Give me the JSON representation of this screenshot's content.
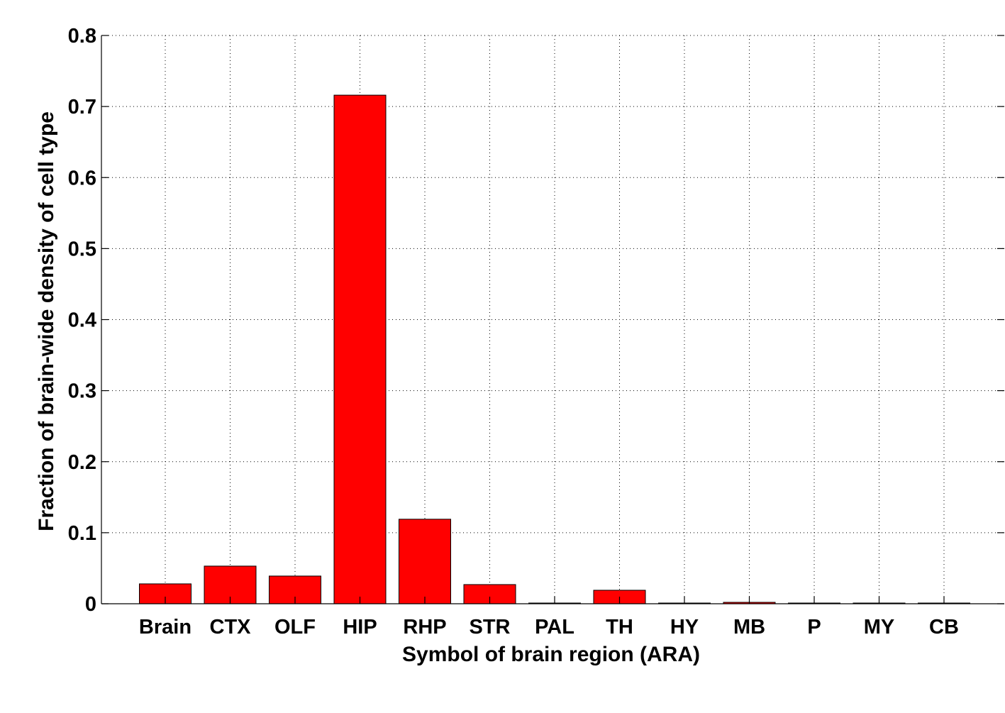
{
  "chart_data": {
    "type": "bar",
    "title": "",
    "xlabel": "Symbol of brain region (ARA)",
    "ylabel": "Fraction of brain-wide density of cell type",
    "categories": [
      "Brain",
      "CTX",
      "OLF",
      "HIP",
      "RHP",
      "STR",
      "PAL",
      "TH",
      "HY",
      "MB",
      "P",
      "MY",
      "CB"
    ],
    "values": [
      0.028,
      0.053,
      0.039,
      0.716,
      0.119,
      0.027,
      0.001,
      0.019,
      0.001,
      0.002,
      0.001,
      0.001,
      0.001
    ],
    "ylim": [
      0,
      0.8
    ],
    "yticks": [
      "0",
      "0.1",
      "0.2",
      "0.3",
      "0.4",
      "0.5",
      "0.6",
      "0.7",
      "0.8"
    ],
    "grid": true,
    "bar_color": "#ff0000"
  }
}
